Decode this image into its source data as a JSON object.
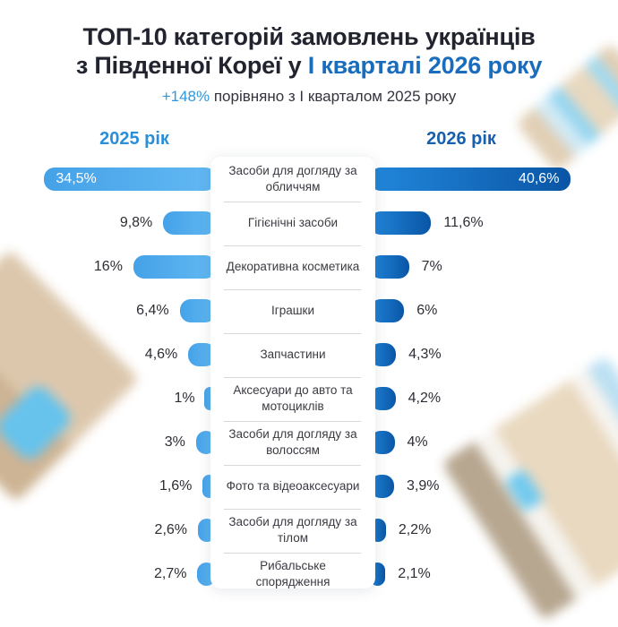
{
  "title": {
    "line1": "ТОП-10 категорій замовлень українців",
    "line2_dark": "з Південної Кореї у ",
    "line2_accent": "І кварталі 2026 року"
  },
  "subtitle": {
    "accent": "+148%",
    "rest": " порівняно з І кварталом 2025 року"
  },
  "colors": {
    "title_text": "#21232e",
    "title_accent": "#1a6cbd",
    "subtitle_accent": "#2f97db",
    "left_header": "#2b8ed6",
    "right_header": "#1660ad",
    "left_bar_gradient": [
      "#45a2e8",
      "#62b8f2"
    ],
    "right_bar_gradient": [
      "#2287db",
      "#0a55a5"
    ],
    "value_text": "#2d2d35",
    "category_text": "#3a3a42",
    "divider": "#d9d9d9"
  },
  "chart_data": {
    "type": "bar",
    "variant": "diverging-horizontal",
    "unit": "%",
    "title": "ТОП-10 категорій замовлень українців з Південної Кореї у І кварталі 2026 року",
    "subtitle": "+148% порівняно з І кварталом 2025 року",
    "categories": [
      "Засоби для догляду за обличчям",
      "Гігієнічні засоби",
      "Декоративна косметика",
      "Іграшки",
      "Запчастини",
      "Аксесуари до авто та мотоциклів",
      "Засоби для догляду за волоссям",
      "Фото та відеоаксесуари",
      "Засоби для догляду за тілом",
      "Рибальське спорядження"
    ],
    "series": [
      {
        "name": "2025 рік",
        "values": [
          34.5,
          9.8,
          16,
          6.4,
          4.6,
          1,
          3,
          1.6,
          2.6,
          2.7
        ],
        "labels": [
          "34,5%",
          "9,8%",
          "16%",
          "6,4%",
          "4,6%",
          "1%",
          "3%",
          "1,6%",
          "2,6%",
          "2,7%"
        ]
      },
      {
        "name": "2026 рік",
        "values": [
          40.6,
          11.6,
          7,
          6,
          4.3,
          4.2,
          4,
          3.9,
          2.2,
          2.1
        ],
        "labels": [
          "40,6%",
          "11,6%",
          "7%",
          "6%",
          "4,3%",
          "4,2%",
          "4%",
          "3,9%",
          "2,2%",
          "2,1%"
        ]
      }
    ],
    "value_labels_inside_first_row": true,
    "legend_position": "column-headers"
  },
  "decor": {
    "items": [
      "parcel-box-top-right",
      "parcel-box-left",
      "parcel-box-bottom-right"
    ]
  }
}
